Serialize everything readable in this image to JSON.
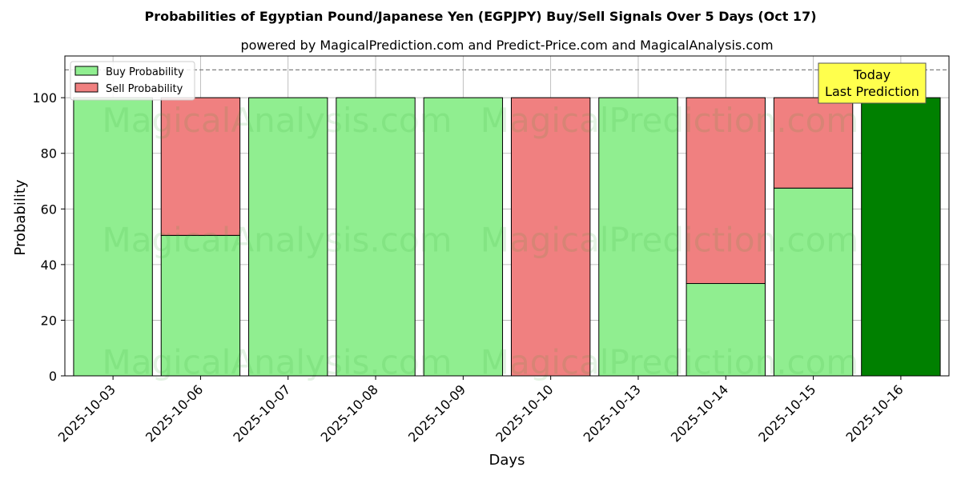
{
  "chart_data": {
    "type": "bar",
    "stacked": true,
    "title": "Probabilities of Egyptian Pound/Japanese Yen (EGPJPY) Buy/Sell Signals Over 5 Days (Oct 17)",
    "subtitle": "powered by MagicalPrediction.com and Predict-Price.com and MagicalAnalysis.com",
    "xlabel": "Days",
    "ylabel": "Probability",
    "ylim": [
      0,
      115
    ],
    "yticks": [
      0,
      20,
      40,
      60,
      80,
      100
    ],
    "reference_line": 110,
    "grid": true,
    "legend_placement": "top-left",
    "categories": [
      "2025-10-03",
      "2025-10-06",
      "2025-10-07",
      "2025-10-08",
      "2025-10-09",
      "2025-10-10",
      "2025-10-13",
      "2025-10-14",
      "2025-10-15",
      "2025-10-16"
    ],
    "series": [
      {
        "name": "Buy Probability",
        "color": "#90ee90",
        "values": [
          100,
          50.5,
          100,
          100,
          100,
          0,
          100,
          33.2,
          67.5,
          100
        ]
      },
      {
        "name": "Sell Probability",
        "color": "#f08080",
        "values": [
          0,
          49.5,
          0,
          0,
          0,
          100,
          0,
          66.8,
          32.5,
          0
        ]
      }
    ],
    "highlight": {
      "category": "2025-10-16",
      "color": "#008000"
    },
    "annotation": {
      "line1": "Today",
      "line2": "Last Prediction",
      "background": "#ffff4d"
    },
    "watermarks": [
      "MagicalAnalysis.com",
      "MagicalPrediction.com"
    ]
  }
}
